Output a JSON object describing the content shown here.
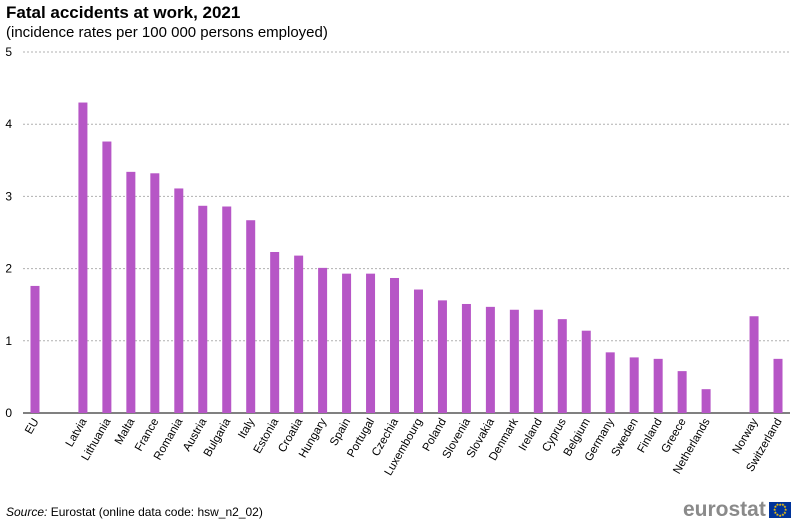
{
  "title": "Fatal accidents at work, 2021",
  "subtitle": "(incidence rates per 100 000 persons employed)",
  "source": {
    "label": "Source:",
    "text": "Eurostat (online data code: hsw_n2_02)"
  },
  "logo": {
    "text": "eurostat"
  },
  "colors": {
    "bar": "#b656c6",
    "grid": "#b0b0b0"
  },
  "chart_data": {
    "type": "bar",
    "title": "Fatal accidents at work, 2021",
    "subtitle": "(incidence rates per 100 000 persons employed)",
    "xlabel": "",
    "ylabel": "",
    "ylim": [
      0,
      5
    ],
    "yticks": [
      0,
      1,
      2,
      3,
      4,
      5
    ],
    "grid": true,
    "categories": [
      "EU",
      "",
      "Latvia",
      "Lithuania",
      "Malta",
      "France",
      "Romania",
      "Austria",
      "Bulgaria",
      "Italy",
      "Estonia",
      "Croatia",
      "Hungary",
      "Spain",
      "Portugal",
      "Czechia",
      "Luxembourg",
      "Poland",
      "Slovenia",
      "Slovakia",
      "Denmark",
      "Ireland",
      "Cyprus",
      "Belgium",
      "Germany",
      "Sweden",
      "Finland",
      "Greece",
      "Netherlands",
      "",
      "Norway",
      "Switzerland"
    ],
    "values": [
      1.76,
      null,
      4.3,
      3.76,
      3.34,
      3.32,
      3.11,
      2.87,
      2.86,
      2.67,
      2.23,
      2.18,
      2.01,
      1.93,
      1.93,
      1.87,
      1.71,
      1.56,
      1.51,
      1.47,
      1.43,
      1.43,
      1.3,
      1.14,
      0.84,
      0.77,
      0.75,
      0.58,
      0.33,
      null,
      1.34,
      0.75
    ]
  }
}
